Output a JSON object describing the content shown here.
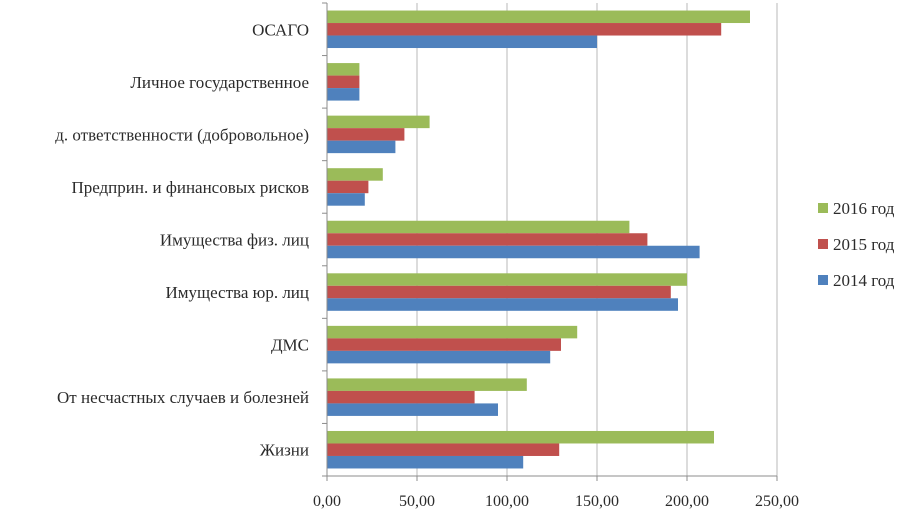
{
  "chart_data": {
    "type": "bar",
    "orientation": "horizontal",
    "categories": [
      "ОСАГО",
      "Личное государственное",
      "д. ответственности (добровольное)",
      "Предприн. и финансовых рисков",
      "Имущества физ. лиц",
      "Имущества юр. лиц",
      "ДМС",
      "От несчастных случаев и болезней",
      "Жизни"
    ],
    "series": [
      {
        "name": "2016 год",
        "color": "#9bbb59",
        "values": [
          235,
          18,
          57,
          31,
          168,
          200,
          139,
          111,
          215
        ]
      },
      {
        "name": "2015 год",
        "color": "#c0504d",
        "values": [
          219,
          18,
          43,
          23,
          178,
          191,
          130,
          82,
          129
        ]
      },
      {
        "name": "2014 год",
        "color": "#4f81bd",
        "values": [
          150,
          18,
          38,
          21,
          207,
          195,
          124,
          95,
          109
        ]
      }
    ],
    "xlim": [
      0,
      250
    ],
    "xticks": [
      "0,00",
      "50,00",
      "100,00",
      "150,00",
      "200,00",
      "250,00"
    ],
    "grid": true,
    "legend_position": "right",
    "title": "",
    "xlabel": "",
    "ylabel": ""
  }
}
